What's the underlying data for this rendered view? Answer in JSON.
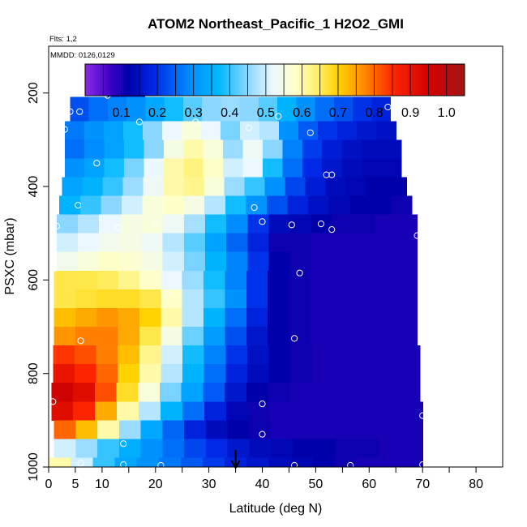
{
  "chart_data": {
    "type": "heatmap",
    "title": "ATOM2 Northeast_Pacific_1 H2O2_GMI",
    "flights_label": "Flts: 1,2",
    "dates_label": "MMDD: 0126,0129",
    "xlabel": "Latitude (deg N)",
    "ylabel": "PSXC (mbar)",
    "xlim": [
      0,
      85
    ],
    "ylim": [
      1000,
      100
    ],
    "x_ticks": [
      0,
      5,
      10,
      20,
      30,
      40,
      50,
      60,
      70,
      80
    ],
    "y_ticks": [
      200,
      400,
      600,
      800,
      1000
    ],
    "colorbar": {
      "range": [
        0.0,
        1.05
      ],
      "ticks": [
        0.1,
        0.2,
        0.3,
        0.4,
        0.5,
        0.6,
        0.7,
        0.8,
        0.9,
        1.0
      ],
      "tick_labels": [
        "0.1",
        "0.2",
        "0.3",
        "0.4",
        "0.5",
        "0.6",
        "0.7",
        "0.8",
        "0.9",
        "1.0"
      ]
    },
    "marker_latitude": 35,
    "layers": [
      {
        "p": 200,
        "lat_min": 11,
        "lat_max": 18,
        "values": [
          0.15,
          0.17
        ]
      },
      {
        "p": 240,
        "lat_min": 4,
        "lat_max": 64,
        "values": [
          0.23,
          0.26,
          0.28,
          0.3,
          0.34,
          0.38,
          0.42,
          0.45,
          0.46,
          0.45,
          0.42,
          0.36,
          0.3,
          0.26,
          0.23,
          0.2,
          0.18
        ]
      },
      {
        "p": 280,
        "lat_min": 3,
        "lat_max": 65,
        "values": [
          0.27,
          0.3,
          0.33,
          0.38,
          0.45,
          0.52,
          0.56,
          0.52,
          0.44,
          0.5,
          0.48,
          0.3,
          0.24,
          0.2,
          0.18,
          0.16,
          0.15
        ]
      },
      {
        "p": 320,
        "lat_min": 3,
        "lat_max": 66,
        "values": [
          0.26,
          0.29,
          0.33,
          0.38,
          0.45,
          0.55,
          0.6,
          0.56,
          0.46,
          0.53,
          0.45,
          0.28,
          0.21,
          0.17,
          0.15,
          0.14,
          0.14
        ]
      },
      {
        "p": 360,
        "lat_min": 3,
        "lat_max": 66,
        "values": [
          0.3,
          0.33,
          0.38,
          0.44,
          0.52,
          0.6,
          0.63,
          0.58,
          0.5,
          0.52,
          0.38,
          0.26,
          0.19,
          0.16,
          0.14,
          0.13,
          0.13
        ]
      },
      {
        "p": 400,
        "lat_min": 2.5,
        "lat_max": 67,
        "values": [
          0.33,
          0.36,
          0.4,
          0.46,
          0.53,
          0.6,
          0.62,
          0.56,
          0.46,
          0.4,
          0.3,
          0.22,
          0.17,
          0.14,
          0.13,
          0.12,
          0.12
        ]
      },
      {
        "p": 440,
        "lat_min": 2,
        "lat_max": 68,
        "values": [
          0.36,
          0.4,
          0.45,
          0.5,
          0.56,
          0.58,
          0.55,
          0.48,
          0.38,
          0.3,
          0.23,
          0.18,
          0.15,
          0.13,
          0.12,
          0.12,
          0.11
        ]
      },
      {
        "p": 480,
        "lat_min": 1.5,
        "lat_max": 69,
        "values": [
          0.45,
          0.48,
          0.52,
          0.55,
          0.56,
          0.53,
          0.47,
          0.38,
          0.29,
          0.2,
          0.14,
          0.13,
          0.12,
          0.11,
          0.11,
          0.1,
          0.1
        ]
      },
      {
        "p": 520,
        "lat_min": 1.5,
        "lat_max": 69,
        "values": [
          0.5,
          0.52,
          0.54,
          0.55,
          0.53,
          0.48,
          0.42,
          0.33,
          0.25,
          0.18,
          0.11,
          0.11,
          0.1,
          0.1,
          0.1,
          0.1,
          0.1
        ]
      },
      {
        "p": 560,
        "lat_min": 1.5,
        "lat_max": 69,
        "values": [
          0.54,
          0.56,
          0.58,
          0.57,
          0.55,
          0.5,
          0.44,
          0.36,
          0.28,
          0.2,
          0.12,
          0.11,
          0.1,
          0.1,
          0.1,
          0.1,
          0.1
        ]
      },
      {
        "p": 600,
        "lat_min": 1,
        "lat_max": 69,
        "values": [
          0.66,
          0.66,
          0.65,
          0.62,
          0.58,
          0.52,
          0.46,
          0.38,
          0.28,
          0.2,
          0.12,
          0.11,
          0.1,
          0.1,
          0.1,
          0.1,
          0.1
        ]
      },
      {
        "p": 640,
        "lat_min": 1,
        "lat_max": 69,
        "values": [
          0.66,
          0.67,
          0.68,
          0.68,
          0.66,
          0.58,
          0.48,
          0.4,
          0.3,
          0.2,
          0.12,
          0.11,
          0.1,
          0.1,
          0.1,
          0.1,
          0.1
        ]
      },
      {
        "p": 680,
        "lat_min": 1,
        "lat_max": 69,
        "values": [
          0.72,
          0.74,
          0.76,
          0.74,
          0.7,
          0.6,
          0.48,
          0.36,
          0.26,
          0.18,
          0.12,
          0.11,
          0.1,
          0.1,
          0.1,
          0.1,
          0.1
        ]
      },
      {
        "p": 720,
        "lat_min": 1,
        "lat_max": 69,
        "values": [
          0.76,
          0.78,
          0.78,
          0.74,
          0.66,
          0.55,
          0.43,
          0.32,
          0.23,
          0.16,
          0.12,
          0.11,
          0.1,
          0.1,
          0.1,
          0.1,
          0.1
        ]
      },
      {
        "p": 760,
        "lat_min": 0.8,
        "lat_max": 69.5,
        "values": [
          0.84,
          0.82,
          0.78,
          0.72,
          0.62,
          0.5,
          0.38,
          0.28,
          0.2,
          0.15,
          0.12,
          0.11,
          0.1,
          0.1,
          0.1,
          0.1,
          0.1
        ]
      },
      {
        "p": 800,
        "lat_min": 0.8,
        "lat_max": 69.5,
        "values": [
          0.9,
          0.86,
          0.8,
          0.7,
          0.6,
          0.48,
          0.36,
          0.26,
          0.18,
          0.14,
          0.12,
          0.11,
          0.1,
          0.1,
          0.1,
          0.1,
          0.1
        ]
      },
      {
        "p": 840,
        "lat_min": 0.5,
        "lat_max": 69.5,
        "values": [
          0.96,
          0.92,
          0.82,
          0.68,
          0.56,
          0.44,
          0.33,
          0.24,
          0.16,
          0.12,
          0.11,
          0.1,
          0.1,
          0.1,
          0.1,
          0.1,
          0.1
        ]
      },
      {
        "p": 880,
        "lat_min": 0.5,
        "lat_max": 70,
        "values": [
          0.92,
          0.86,
          0.74,
          0.6,
          0.48,
          0.36,
          0.26,
          0.18,
          0.13,
          0.11,
          0.1,
          0.1,
          0.1,
          0.1,
          0.1,
          0.1,
          0.1
        ]
      },
      {
        "p": 920,
        "lat_min": 1,
        "lat_max": 70,
        "values": [
          0.8,
          0.72,
          0.6,
          0.46,
          0.34,
          0.25,
          0.18,
          0.14,
          0.12,
          0.11,
          0.1,
          0.1,
          0.1,
          0.1,
          0.1,
          0.1,
          0.1
        ]
      },
      {
        "p": 960,
        "lat_min": 1,
        "lat_max": 70,
        "values": [
          0.5,
          0.46,
          0.4,
          0.35,
          0.3,
          0.26,
          0.22,
          0.19,
          0.16,
          0.14,
          0.13,
          0.12,
          0.12,
          0.11,
          0.11,
          0.1,
          0.1
        ]
      },
      {
        "p": 1000,
        "lat_min": 0,
        "lat_max": 70,
        "values": [
          0.6,
          0.5,
          0.4,
          0.34,
          0.3,
          0.27,
          0.24,
          0.21,
          0.18,
          0.16,
          0.14,
          0.13,
          0.12,
          0.11,
          0.1,
          0.1,
          0.1
        ]
      }
    ],
    "sample_points": [
      {
        "lat": 11,
        "p": 205
      },
      {
        "lat": 17.5,
        "p": 195
      },
      {
        "lat": 4,
        "p": 240
      },
      {
        "lat": 5.8,
        "p": 240
      },
      {
        "lat": 43,
        "p": 250
      },
      {
        "lat": 63.5,
        "p": 230
      },
      {
        "lat": 3,
        "p": 278
      },
      {
        "lat": 17,
        "p": 262
      },
      {
        "lat": 27.5,
        "p": 262
      },
      {
        "lat": 37.5,
        "p": 275
      },
      {
        "lat": 49,
        "p": 285
      },
      {
        "lat": 9,
        "p": 350
      },
      {
        "lat": 52,
        "p": 375
      },
      {
        "lat": 53,
        "p": 375
      },
      {
        "lat": 5.5,
        "p": 440
      },
      {
        "lat": 38.5,
        "p": 445
      },
      {
        "lat": 1.5,
        "p": 485
      },
      {
        "lat": 13,
        "p": 488
      },
      {
        "lat": 20,
        "p": 478
      },
      {
        "lat": 40,
        "p": 475
      },
      {
        "lat": 45.5,
        "p": 482
      },
      {
        "lat": 51,
        "p": 480
      },
      {
        "lat": 53,
        "p": 492
      },
      {
        "lat": 69,
        "p": 505
      },
      {
        "lat": 1,
        "p": 575
      },
      {
        "lat": 47,
        "p": 585
      },
      {
        "lat": 22,
        "p": 630
      },
      {
        "lat": 6,
        "p": 730
      },
      {
        "lat": 46,
        "p": 725
      },
      {
        "lat": 0.8,
        "p": 860
      },
      {
        "lat": 40,
        "p": 865
      },
      {
        "lat": 70,
        "p": 890
      },
      {
        "lat": 40,
        "p": 930
      },
      {
        "lat": 14,
        "p": 950
      },
      {
        "lat": 6,
        "p": 992
      },
      {
        "lat": 14,
        "p": 995
      },
      {
        "lat": 21,
        "p": 1000
      },
      {
        "lat": 46,
        "p": 1015
      },
      {
        "lat": 56.5,
        "p": 1008
      },
      {
        "lat": 70,
        "p": 995
      }
    ]
  }
}
